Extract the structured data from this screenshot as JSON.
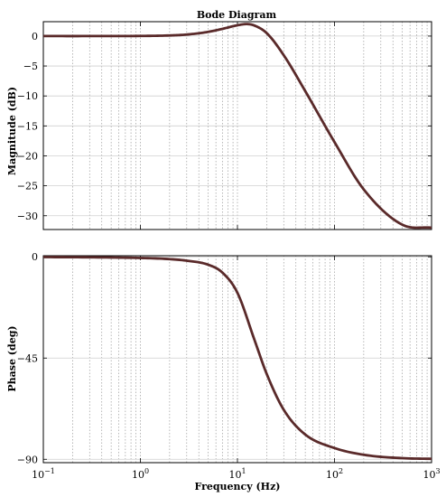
{
  "chart_data": [
    {
      "type": "line",
      "panel": "magnitude",
      "title": "Bode Diagram",
      "ylabel": "Magnitude (dB)",
      "xlabel": "",
      "xscale": "log",
      "xlim": [
        0.1,
        1000
      ],
      "ylim": [
        -32.3,
        2.4
      ],
      "yticks": [
        0,
        -5,
        -10,
        -15,
        -20,
        -25,
        -30
      ],
      "yticklabels": [
        "0",
        "−5",
        "−10",
        "−15",
        "−20",
        "−25",
        "−30"
      ],
      "grid": true,
      "line_color": "#5a2a2a",
      "series": [
        {
          "x": [
            0.1,
            0.3,
            1,
            2,
            3,
            5,
            7,
            10,
            12.7,
            15,
            20,
            30,
            50,
            100,
            200,
            500,
            1000
          ],
          "y": [
            0,
            0,
            0.02,
            0.1,
            0.25,
            0.7,
            1.2,
            1.8,
            2.0,
            1.75,
            0.5,
            -3.2,
            -9.2,
            -17.7,
            -25.6,
            -31.5,
            -32.0
          ]
        }
      ]
    },
    {
      "type": "line",
      "panel": "phase",
      "title": "",
      "ylabel": "Phase (deg)",
      "xlabel": "Frequency  (Hz)",
      "xscale": "log",
      "xlim": [
        0.1,
        1000
      ],
      "ylim": [
        -91.5,
        0.5
      ],
      "xticks": [
        0.1,
        1,
        10,
        100,
        1000
      ],
      "xticklabels": [
        {
          "base": "10",
          "exp": "−1"
        },
        {
          "base": "10",
          "exp": "0"
        },
        {
          "base": "10",
          "exp": "1"
        },
        {
          "base": "10",
          "exp": "2"
        },
        {
          "base": "10",
          "exp": "3"
        }
      ],
      "yticks": [
        0,
        -45,
        -90
      ],
      "yticklabels": [
        "0",
        "−45",
        "−90"
      ],
      "grid": true,
      "line_color": "#5a2a2a",
      "series": [
        {
          "x": [
            0.1,
            0.3,
            1,
            2,
            3,
            5,
            7,
            10,
            15,
            20,
            30,
            50,
            100,
            200,
            500,
            1000
          ],
          "y": [
            -0.1,
            -0.2,
            -0.5,
            -1,
            -1.7,
            -3.5,
            -7,
            -16,
            -37,
            -52,
            -68,
            -79,
            -85,
            -88,
            -89.5,
            -89.8
          ]
        }
      ]
    }
  ]
}
